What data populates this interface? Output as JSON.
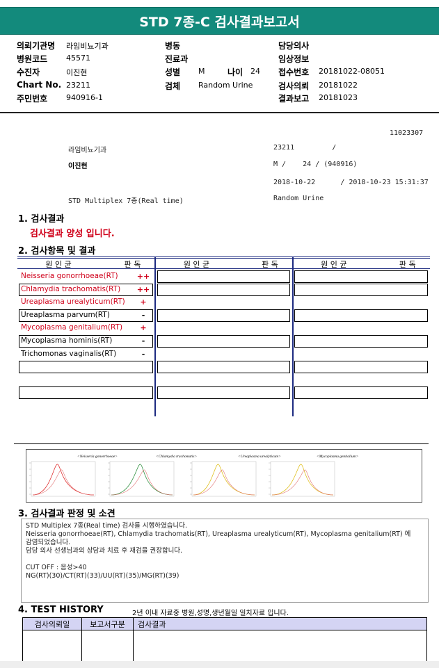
{
  "header": {
    "title": "STD 7종-C 검사결과보고서"
  },
  "info": {
    "institution": {
      "label": "의뢰기관명",
      "value": "라임비뇨기과"
    },
    "hospital_code": {
      "label": "병원코드",
      "value": "45571"
    },
    "patient": {
      "label": "수진자",
      "value": "이진현"
    },
    "chart_no": {
      "label": "Chart No.",
      "value": "23211"
    },
    "resident_no": {
      "label": "주민번호",
      "value": "940916-1"
    },
    "ward": {
      "label": "병동"
    },
    "department": {
      "label": "진료과"
    },
    "sex": {
      "label": "성별",
      "value": "M"
    },
    "age": {
      "label": "나이",
      "value": "24"
    },
    "specimen": {
      "label": "검체",
      "value": "Random Urine"
    },
    "doctor": {
      "label": "담당의사"
    },
    "clinical_info": {
      "label": "임상정보"
    },
    "receipt_no": {
      "label": "접수번호",
      "value": "20181022-08051"
    },
    "request_date": {
      "label": "검사의뢰",
      "value": "20181022"
    },
    "report_date": {
      "label": "결과보고",
      "value": "20181023"
    }
  },
  "report": {
    "id": "11023307",
    "institution": "라임비뇨기과",
    "chart": "23211         /",
    "name": "이진현",
    "sex_age": "M /    24 / (940916)",
    "dates": "2018-10-22      / 2018-10-23 15:31:37",
    "test": "STD Multiplex 7종(Real time)",
    "specimen": "Random Urine"
  },
  "section1": {
    "title": "1. 검사결과",
    "result": "검사결과 양성 입니다."
  },
  "section2": {
    "title": "2. 검사항목 및 결과",
    "header": {
      "organism": "원 인 균",
      "reading": "판 독"
    },
    "items": [
      {
        "name": "Neisseria gonorrhoeae(RT)",
        "result": "++",
        "color": "#d0021b"
      },
      {
        "name": "Chlamydia trachomatis(RT)",
        "result": "++",
        "color": "#d0021b"
      },
      {
        "name": "Ureaplasma urealyticum(RT)",
        "result": "+",
        "color": "#d0021b"
      },
      {
        "name": "Ureaplasma parvum(RT)",
        "result": "-",
        "color": "#000000"
      },
      {
        "name": "Mycoplasma genitalium(RT)",
        "result": "+",
        "color": "#d0021b"
      },
      {
        "name": "Mycoplasma hominis(RT)",
        "result": "-",
        "color": "#000000"
      },
      {
        "name": "Trichomonas vaginalis(RT)",
        "result": "-",
        "color": "#000000"
      }
    ]
  },
  "curves": [
    {
      "label": "<Neisseria gonorrhoeae>",
      "color": "#e03030"
    },
    {
      "label": "<Chlamydia trachomatis>",
      "color": "#309040"
    },
    {
      "label": "<Ureaplasma urealyticum>",
      "color": "#e0c020"
    },
    {
      "label": "<Mycoplasma genitalium>",
      "color": "#e0c020"
    }
  ],
  "section3": {
    "title": "3. 검사결과 판정 및 소견",
    "lines": [
      "STD Multiplex 7종(Real time) 검사를 시행하였습니다.",
      "Neisseria gonorrhoeae(RT), Chlamydia trachomatis(RT), Ureaplasma urealyticum(RT), Mycoplasma genitalium(RT) 에",
      "감염되었습니다.",
      "담당 의사 선생님과의 상담과 치료 후 재검을 권장합니다.",
      "",
      "CUT OFF : 음성>40",
      "NG(RT)(30)/CT(RT)(33)/UU(RT)(35)/MG(RT)(39)"
    ]
  },
  "section4": {
    "title": "4. TEST HISTORY",
    "note": "2년 이내 자료중 병원,성명,생년월일 일치자료 입니다.",
    "columns": [
      "검사의뢰일",
      "보고서구분",
      "검사결과"
    ]
  }
}
